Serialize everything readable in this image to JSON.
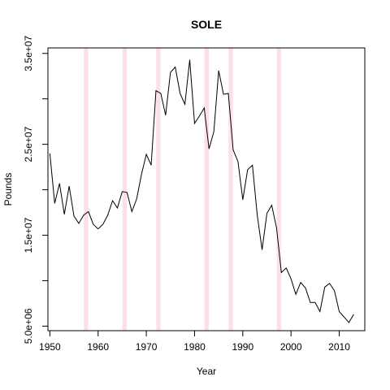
{
  "chart_data": {
    "type": "line",
    "title": "SOLE",
    "xlabel": "Year",
    "ylabel": "Pounds",
    "xlim": [
      1949.6,
      2015.3
    ],
    "ylim": [
      4500000,
      35600000
    ],
    "x_ticks": [
      1950,
      1960,
      1970,
      1980,
      1990,
      2000,
      2010
    ],
    "x_tick_labels": [
      "1950",
      "1960",
      "1970",
      "1980",
      "1990",
      "2000",
      "2010"
    ],
    "y_ticks": [
      5000000,
      10000000,
      15000000,
      20000000,
      25000000,
      30000000,
      35000000
    ],
    "y_tick_labels": [
      "5.0e+06",
      "",
      "1.5e+07",
      "",
      "2.5e+07",
      "",
      "3.5e+07"
    ],
    "shaded_years": [
      1957.5,
      1965.5,
      1972.5,
      1982.5,
      1987.5,
      1997.5
    ],
    "shade_color": "#fde0e4",
    "line_color": "#000000",
    "series": [
      {
        "x": [
          1950,
          1951,
          1952,
          1953,
          1954,
          1955,
          1956,
          1957,
          1958,
          1959,
          1960,
          1961,
          1962,
          1963,
          1964,
          1965,
          1966,
          1967,
          1968,
          1969,
          1970,
          1971,
          1972,
          1973,
          1974,
          1975,
          1976,
          1977,
          1978,
          1979,
          1980,
          1981,
          1982,
          1983,
          1984,
          1985,
          1986,
          1987,
          1988,
          1989,
          1990,
          1991,
          1992,
          1993,
          1994,
          1995,
          1996,
          1997,
          1998,
          1999,
          2000,
          2001,
          2002,
          2003,
          2004,
          2005,
          2006,
          2007,
          2008,
          2009,
          2010,
          2011,
          2012,
          2013
        ],
        "y": [
          24000000,
          18500000,
          20700000,
          17300000,
          20400000,
          17100000,
          16300000,
          17200000,
          17600000,
          16200000,
          15700000,
          16200000,
          17200000,
          18800000,
          18000000,
          19800000,
          19700000,
          17600000,
          19000000,
          21700000,
          23900000,
          22700000,
          30900000,
          30600000,
          28200000,
          32900000,
          33500000,
          30600000,
          29400000,
          34300000,
          27300000,
          28100000,
          29000000,
          24500000,
          26400000,
          33100000,
          30500000,
          30600000,
          24400000,
          23100000,
          18900000,
          22200000,
          22700000,
          17200000,
          13400000,
          17400000,
          18300000,
          15800000,
          10900000,
          11400000,
          10200000,
          8500000,
          9800000,
          9200000,
          7600000,
          7600000,
          6600000,
          9300000,
          9700000,
          8900000,
          6600000,
          6000000,
          5400000,
          6300000
        ]
      }
    ]
  }
}
